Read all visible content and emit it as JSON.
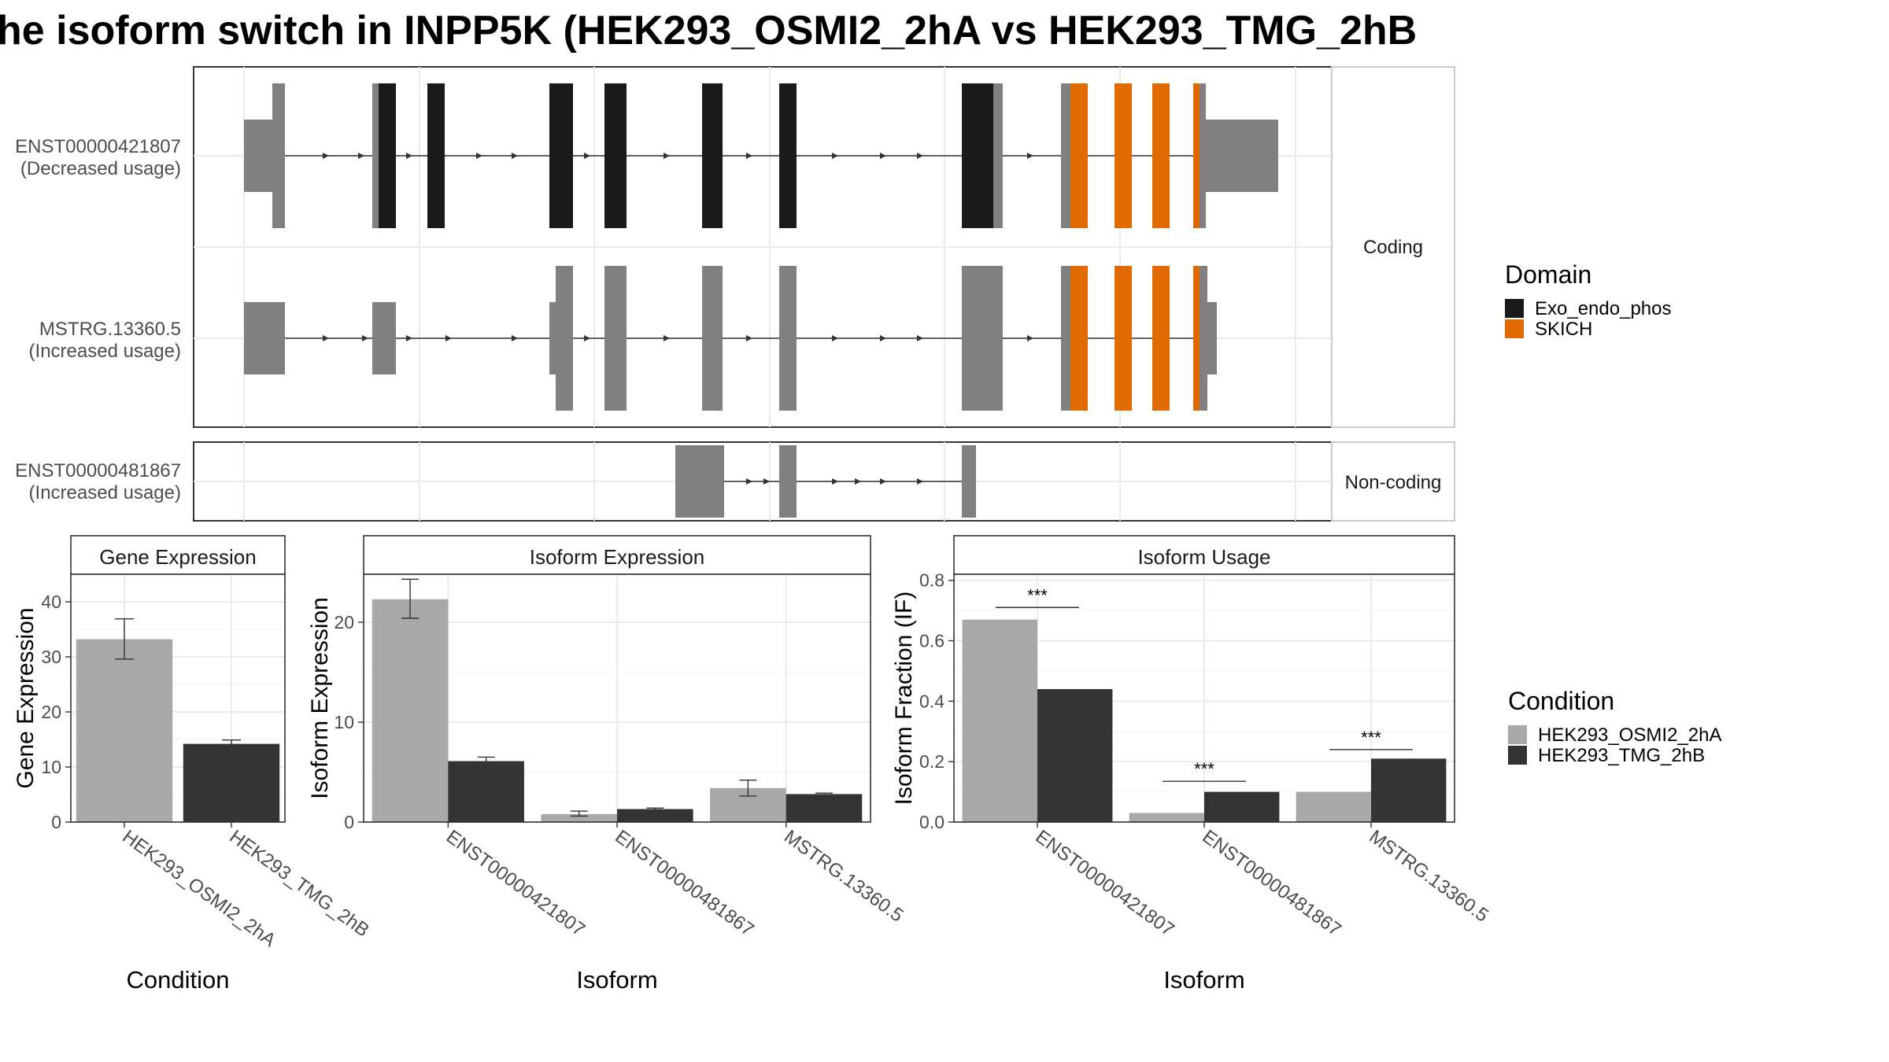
{
  "figure": {
    "title": "he isoform switch in INPP5K (HEK293_OSMI2_2hA vs HEK293_TMG_2hB"
  },
  "transcripts": {
    "coding_label": "Coding",
    "noncoding_label": "Non-coding",
    "isoforms": [
      {
        "id": "ENST00000421807",
        "usage": "(Decreased usage)",
        "group": "coding"
      },
      {
        "id": "MSTRG.13360.5",
        "usage": "(Increased usage)",
        "group": "coding"
      },
      {
        "id": "ENST00000481867",
        "usage": "(Increased usage)",
        "group": "noncoding"
      }
    ]
  },
  "legends": {
    "domain": {
      "title": "Domain",
      "items": [
        {
          "label": "Exo_endo_phos",
          "color": "#1a1a1a"
        },
        {
          "label": "SKICH",
          "color": "#e06900"
        }
      ]
    },
    "condition": {
      "title": "Condition",
      "items": [
        {
          "label": "HEK293_OSMI2_2hA",
          "color": "#a8a8a8"
        },
        {
          "label": "HEK293_TMG_2hB",
          "color": "#333333"
        }
      ]
    }
  },
  "chart_data": [
    {
      "type": "bar",
      "title": "Gene Expression",
      "xlabel": "Condition",
      "ylabel": "Gene Expression",
      "ylim": [
        0,
        45
      ],
      "yticks": [
        0,
        10,
        20,
        30,
        40
      ],
      "categories": [
        "HEK293_OSMI2_2hA",
        "HEK293_TMG_2hB"
      ],
      "values": [
        33.2,
        14.2
      ],
      "errors": [
        [
          29.6,
          36.9
        ],
        [
          13.6,
          14.9
        ]
      ],
      "colors": [
        "#a8a8a8",
        "#333333"
      ]
    },
    {
      "type": "bar",
      "title": "Isoform Expression",
      "xlabel": "Isoform",
      "ylabel": "Isoform Expression",
      "ylim": [
        0,
        24.8
      ],
      "yticks": [
        0,
        10,
        20
      ],
      "categories": [
        "ENST00000421807",
        "ENST00000481867",
        "MSTRG.13360.5"
      ],
      "series": [
        {
          "name": "HEK293_OSMI2_2hA",
          "values": [
            22.3,
            0.8,
            3.4
          ],
          "errors": [
            [
              20.4,
              24.3
            ],
            [
              0.6,
              1.1
            ],
            [
              2.6,
              4.2
            ]
          ]
        },
        {
          "name": "HEK293_TMG_2hB",
          "values": [
            6.1,
            1.3,
            2.8
          ],
          "errors": [
            [
              5.8,
              6.5
            ],
            [
              1.2,
              1.4
            ],
            [
              2.7,
              2.9
            ]
          ]
        }
      ]
    },
    {
      "type": "bar",
      "title": "Isoform Usage",
      "xlabel": "Isoform",
      "ylabel": "Isoform Fraction (IF)",
      "ylim": [
        0,
        0.82
      ],
      "yticks": [
        0.0,
        0.2,
        0.4,
        0.6,
        0.8
      ],
      "ytick_labels": [
        "0.0",
        "0.2",
        "0.4",
        "0.6",
        "0.8"
      ],
      "categories": [
        "ENST00000421807",
        "ENST00000481867",
        "MSTRG.13360.5"
      ],
      "series": [
        {
          "name": "HEK293_OSMI2_2hA",
          "values": [
            0.67,
            0.03,
            0.1
          ]
        },
        {
          "name": "HEK293_TMG_2hB",
          "values": [
            0.44,
            0.1,
            0.21
          ]
        }
      ],
      "annotations": [
        {
          "category": "ENST00000421807",
          "text": "***",
          "level": 0.71
        },
        {
          "category": "ENST00000481867",
          "text": "***",
          "level": 0.135
        },
        {
          "category": "MSTRG.13360.5",
          "text": "***",
          "level": 0.24
        }
      ]
    }
  ]
}
